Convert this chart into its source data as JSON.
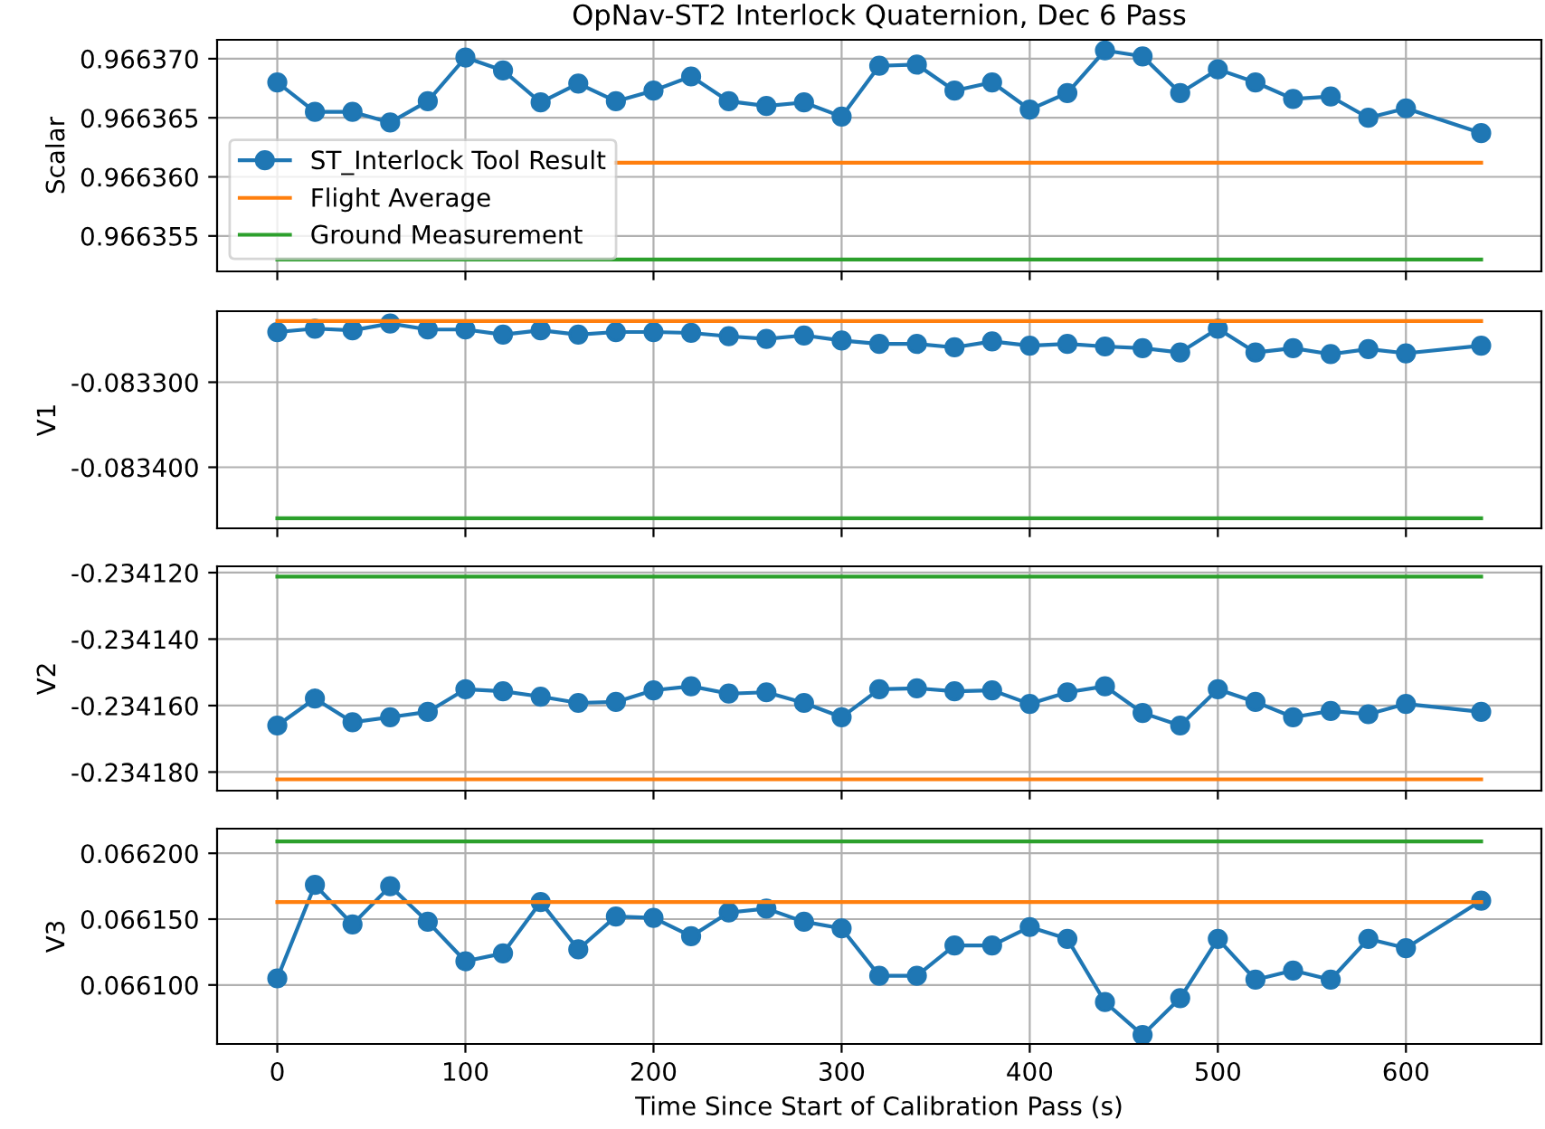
{
  "chart_data": [
    {
      "type": "line",
      "title": "OpNav-ST2 Interlock Quaternion, Dec 6 Pass",
      "ylabel": "Scalar",
      "x": [
        0,
        20,
        40,
        60,
        80,
        100,
        120,
        140,
        160,
        180,
        200,
        220,
        240,
        260,
        280,
        300,
        320,
        340,
        360,
        380,
        400,
        420,
        440,
        460,
        480,
        500,
        520,
        540,
        560,
        580,
        600,
        640
      ],
      "series": [
        {
          "name": "ST_Interlock Tool Result",
          "color": "#1f77b4",
          "marker": "circle",
          "values": [
            0.966368,
            0.9663655,
            0.9663655,
            0.9663646,
            0.9663664,
            0.9663701,
            0.966369,
            0.9663663,
            0.9663679,
            0.9663664,
            0.9663673,
            0.9663685,
            0.9663664,
            0.966366,
            0.9663663,
            0.9663651,
            0.9663694,
            0.9663695,
            0.9663673,
            0.966368,
            0.9663657,
            0.9663671,
            0.9663707,
            0.9663702,
            0.9663671,
            0.9663691,
            0.966368,
            0.9663666,
            0.9663668,
            0.966365,
            0.9663658,
            0.9663637
          ]
        },
        {
          "name": "Flight Average",
          "color": "#ff7f0e",
          "values": [
            null,
            null,
            null,
            null,
            null,
            null,
            null,
            null,
            null,
            0.9663612,
            0.9663612,
            0.9663612,
            0.9663612,
            0.9663612,
            0.9663612,
            0.9663612,
            0.9663612,
            0.9663612,
            0.9663612,
            0.9663612,
            0.9663612,
            0.9663612,
            0.9663612,
            0.9663612,
            0.9663612,
            0.9663612,
            0.9663612,
            0.9663612,
            0.9663612,
            0.9663612,
            0.9663612,
            0.9663612
          ]
        },
        {
          "name": "Ground Measurement",
          "color": "#2ca02c",
          "values": [
            0.966353,
            0.966353,
            0.966353,
            0.966353,
            0.966353,
            0.966353,
            0.966353,
            0.966353,
            0.966353,
            0.966353,
            0.966353,
            0.966353,
            0.966353,
            0.966353,
            0.966353,
            0.966353,
            0.966353,
            0.966353,
            0.966353,
            0.966353,
            0.966353,
            0.966353,
            0.966353,
            0.966353,
            0.966353,
            0.966353,
            0.966353,
            0.966353,
            0.966353,
            0.966353,
            0.966353,
            0.966353
          ]
        }
      ],
      "xlim": [
        -32,
        672
      ],
      "xticks": [
        0,
        100,
        200,
        300,
        400,
        500,
        600
      ],
      "ylim": [
        0.966352,
        0.9663716
      ],
      "yticks": [
        {
          "value": 0.966355,
          "label": "0.966355"
        },
        {
          "value": 0.96636,
          "label": "0.966360"
        },
        {
          "value": 0.966365,
          "label": "0.966365"
        },
        {
          "value": 0.96637,
          "label": "0.966370"
        }
      ],
      "grid": true,
      "legend": "bottom left",
      "tick_labels": "y"
    },
    {
      "type": "line",
      "ylabel": "V1",
      "x": [
        0,
        20,
        40,
        60,
        80,
        100,
        120,
        140,
        160,
        180,
        200,
        220,
        240,
        260,
        280,
        300,
        320,
        340,
        360,
        380,
        400,
        420,
        440,
        460,
        480,
        500,
        520,
        540,
        560,
        580,
        600,
        640
      ],
      "series": [
        {
          "color": "#1f77b4",
          "marker": "circle",
          "values": [
            -0.083241,
            -0.083237,
            -0.083239,
            -0.083231,
            -0.083238,
            -0.083238,
            -0.083244,
            -0.083239,
            -0.083244,
            -0.083241,
            -0.083241,
            -0.083242,
            -0.083246,
            -0.083249,
            -0.083245,
            -0.083251,
            -0.083255,
            -0.083255,
            -0.083259,
            -0.083252,
            -0.083257,
            -0.083255,
            -0.083258,
            -0.08326,
            -0.083265,
            -0.083237,
            -0.083265,
            -0.08326,
            -0.083267,
            -0.083261,
            -0.083266,
            -0.083257
          ]
        },
        {
          "color": "#ff7f0e",
          "values": [
            -0.083228,
            -0.083228,
            -0.083228,
            -0.083228,
            -0.083228,
            -0.083228,
            -0.083228,
            -0.083228,
            -0.083228,
            -0.083228,
            -0.083228,
            -0.083228,
            -0.083228,
            -0.083228,
            -0.083228,
            -0.083228,
            -0.083228,
            -0.083228,
            -0.083228,
            -0.083228,
            -0.083228,
            -0.083228,
            -0.083228,
            -0.083228,
            -0.083228,
            -0.083228,
            -0.083228,
            -0.083228,
            -0.083228,
            -0.083228,
            -0.083228,
            -0.083228
          ]
        },
        {
          "color": "#2ca02c",
          "values": [
            -0.08346,
            -0.08346,
            -0.08346,
            -0.08346,
            -0.08346,
            -0.08346,
            -0.08346,
            -0.08346,
            -0.08346,
            -0.08346,
            -0.08346,
            -0.08346,
            -0.08346,
            -0.08346,
            -0.08346,
            -0.08346,
            -0.08346,
            -0.08346,
            -0.08346,
            -0.08346,
            -0.08346,
            -0.08346,
            -0.08346,
            -0.08346,
            -0.08346,
            -0.08346,
            -0.08346,
            -0.08346,
            -0.08346,
            -0.08346,
            -0.08346,
            -0.08346
          ]
        }
      ],
      "xlim": [
        -32,
        672
      ],
      "xticks": [
        0,
        100,
        200,
        300,
        400,
        500,
        600
      ],
      "ylim": [
        -0.0834718,
        -0.0832165
      ],
      "yticks": [
        {
          "value": -0.0834,
          "label": "-0.083400"
        },
        {
          "value": -0.0833,
          "label": "-0.083300"
        }
      ],
      "grid": true,
      "tick_labels": "y"
    },
    {
      "type": "line",
      "ylabel": "V2",
      "x": [
        0,
        20,
        40,
        60,
        80,
        100,
        120,
        140,
        160,
        180,
        200,
        220,
        240,
        260,
        280,
        300,
        320,
        340,
        360,
        380,
        400,
        420,
        440,
        460,
        480,
        500,
        520,
        540,
        560,
        580,
        600,
        640
      ],
      "series": [
        {
          "color": "#1f77b4",
          "marker": "circle",
          "values": [
            -0.234166,
            -0.2341579,
            -0.234165,
            -0.2341635,
            -0.2341619,
            -0.2341551,
            -0.2341557,
            -0.2341573,
            -0.2341592,
            -0.2341589,
            -0.2341554,
            -0.2341542,
            -0.2341564,
            -0.234156,
            -0.2341592,
            -0.2341635,
            -0.2341551,
            -0.2341548,
            -0.2341557,
            -0.2341554,
            -0.2341595,
            -0.234156,
            -0.2341542,
            -0.2341622,
            -0.234166,
            -0.2341551,
            -0.2341589,
            -0.2341635,
            -0.2341616,
            -0.2341626,
            -0.2341595,
            -0.2341619
          ]
        },
        {
          "color": "#2ca02c",
          "values": [
            -0.2341212,
            -0.2341212,
            -0.2341212,
            -0.2341212,
            -0.2341212,
            -0.2341212,
            -0.2341212,
            -0.2341212,
            -0.2341212,
            -0.2341212,
            -0.2341212,
            -0.2341212,
            -0.2341212,
            -0.2341212,
            -0.2341212,
            -0.2341212,
            -0.2341212,
            -0.2341212,
            -0.2341212,
            -0.2341212,
            -0.2341212,
            -0.2341212,
            -0.2341212,
            -0.2341212,
            -0.2341212,
            -0.2341212,
            -0.2341212,
            -0.2341212,
            -0.2341212,
            -0.2341212,
            -0.2341212,
            -0.2341212
          ]
        },
        {
          "color": "#ff7f0e",
          "values": [
            -0.2341822,
            -0.2341822,
            -0.2341822,
            -0.2341822,
            -0.2341822,
            -0.2341822,
            -0.2341822,
            -0.2341822,
            -0.2341822,
            -0.2341822,
            -0.2341822,
            -0.2341822,
            -0.2341822,
            -0.2341822,
            -0.2341822,
            -0.2341822,
            -0.2341822,
            -0.2341822,
            -0.2341822,
            -0.2341822,
            -0.2341822,
            -0.2341822,
            -0.2341822,
            -0.2341822,
            -0.2341822,
            -0.2341822,
            -0.2341822,
            -0.2341822,
            -0.2341822,
            -0.2341822,
            -0.2341822,
            -0.2341822
          ]
        }
      ],
      "xlim": [
        -32,
        672
      ],
      "xticks": [
        0,
        100,
        200,
        300,
        400,
        500,
        600
      ],
      "ylim": [
        -0.2341856,
        -0.2341181
      ],
      "yticks": [
        {
          "value": -0.23418,
          "label": "-0.234180"
        },
        {
          "value": -0.23416,
          "label": "-0.234160"
        },
        {
          "value": -0.23414,
          "label": "-0.234140"
        },
        {
          "value": -0.23412,
          "label": "-0.234120"
        }
      ],
      "grid": true,
      "tick_labels": "y"
    },
    {
      "type": "line",
      "ylabel": "V3",
      "xlabel": "Time Since Start of Calibration Pass (s)",
      "x": [
        0,
        20,
        40,
        60,
        80,
        100,
        120,
        140,
        160,
        180,
        200,
        220,
        240,
        260,
        280,
        300,
        320,
        340,
        360,
        380,
        400,
        420,
        440,
        460,
        480,
        500,
        520,
        540,
        560,
        580,
        600,
        640
      ],
      "series": [
        {
          "color": "#1f77b4",
          "marker": "circle",
          "values": [
            0.066105,
            0.066176,
            0.066146,
            0.066175,
            0.066148,
            0.066118,
            0.066124,
            0.066163,
            0.066127,
            0.066152,
            0.066151,
            0.066137,
            0.066155,
            0.066158,
            0.066148,
            0.066143,
            0.066107,
            0.066107,
            0.06613,
            0.06613,
            0.066144,
            0.066135,
            0.066087,
            0.066062,
            0.06609,
            0.066135,
            0.066104,
            0.066111,
            0.066104,
            0.066135,
            0.066128,
            0.066164
          ]
        },
        {
          "color": "#2ca02c",
          "values": [
            0.066209,
            0.066209,
            0.066209,
            0.066209,
            0.066209,
            0.066209,
            0.066209,
            0.066209,
            0.066209,
            0.066209,
            0.066209,
            0.066209,
            0.066209,
            0.066209,
            0.066209,
            0.066209,
            0.066209,
            0.066209,
            0.066209,
            0.066209,
            0.066209,
            0.066209,
            0.066209,
            0.066209,
            0.066209,
            0.066209,
            0.066209,
            0.066209,
            0.066209,
            0.066209,
            0.066209,
            0.066209
          ]
        },
        {
          "color": "#ff7f0e",
          "values": [
            0.066163,
            0.066163,
            0.066163,
            0.066163,
            0.066163,
            0.066163,
            0.066163,
            0.066163,
            0.066163,
            0.066163,
            0.066163,
            0.066163,
            0.066163,
            0.066163,
            0.066163,
            0.066163,
            0.066163,
            0.066163,
            0.066163,
            0.066163,
            0.066163,
            0.066163,
            0.066163,
            0.066163,
            0.066163,
            0.066163,
            0.066163,
            0.066163,
            0.066163,
            0.066163,
            0.066163,
            0.066163
          ]
        }
      ],
      "xlim": [
        -32,
        672
      ],
      "xticks": [
        0,
        100,
        200,
        300,
        400,
        500,
        600
      ],
      "ylim": [
        0.0660552,
        0.0662187
      ],
      "yticks": [
        {
          "value": 0.0661,
          "label": "0.066100"
        },
        {
          "value": 0.06615,
          "label": "0.066150"
        },
        {
          "value": 0.0662,
          "label": "0.066200"
        }
      ],
      "grid": true
    }
  ]
}
